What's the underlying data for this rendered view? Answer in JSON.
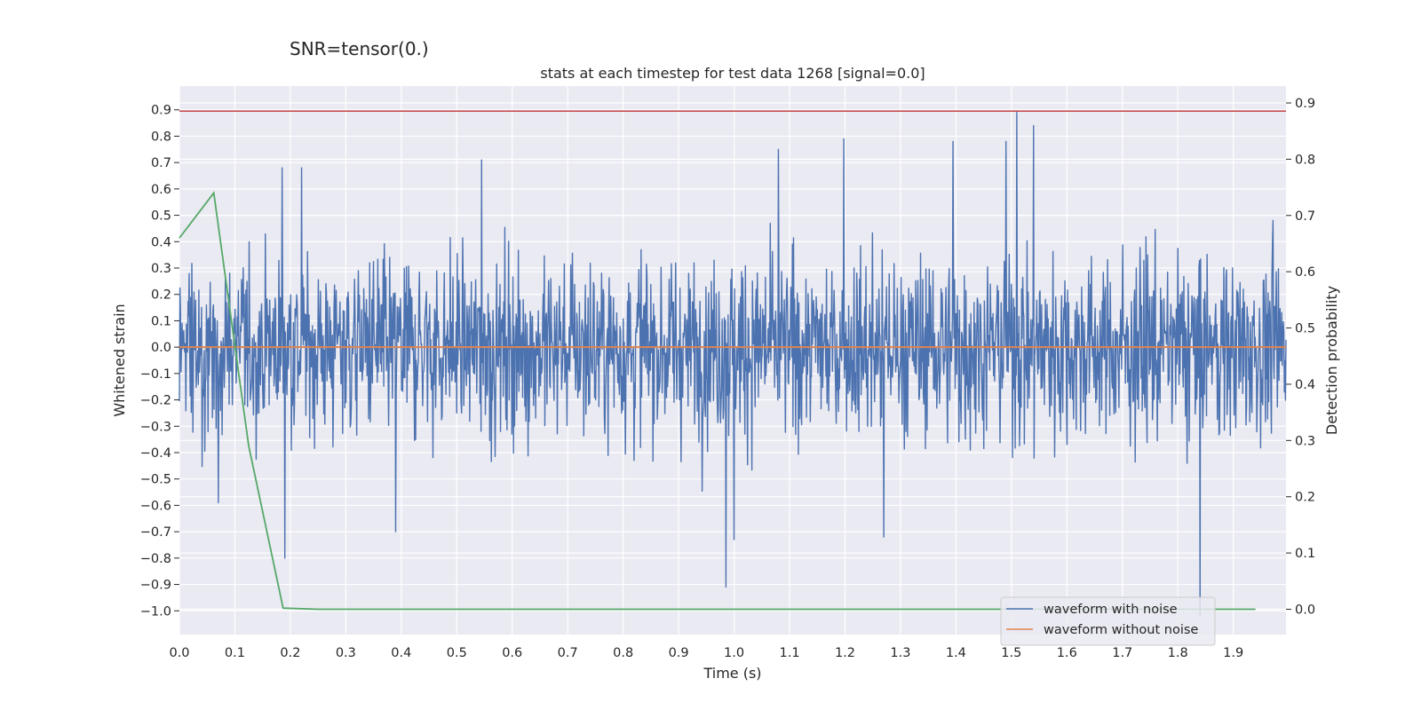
{
  "suptitle": "SNR=tensor(0.)",
  "chart_data": {
    "type": "line",
    "title": "stats at each timestep for test data 1268 [signal=0.0]",
    "xlabel": "Time (s)",
    "ylabel": "Whitened strain",
    "y2label": "Detection probability",
    "xlim": [
      0.0,
      1.995
    ],
    "ylim": [
      -1.09,
      0.99
    ],
    "y2lim": [
      -0.045,
      0.93
    ],
    "x_ticks": [
      "0.0",
      "0.1",
      "0.2",
      "0.3",
      "0.4",
      "0.5",
      "0.6",
      "0.7",
      "0.8",
      "0.9",
      "1.0",
      "1.1",
      "1.2",
      "1.3",
      "1.4",
      "1.5",
      "1.6",
      "1.7",
      "1.8",
      "1.9"
    ],
    "y_ticks": [
      "0.9",
      "0.8",
      "0.7",
      "0.6",
      "0.5",
      "0.4",
      "0.3",
      "0.2",
      "0.1",
      "0.0",
      "−0.1",
      "−0.2",
      "−0.3",
      "−0.4",
      "−0.5",
      "−0.6",
      "−0.7",
      "−0.8",
      "−0.9",
      "−1.0"
    ],
    "y2_ticks": [
      "0.9",
      "0.8",
      "0.7",
      "0.6",
      "0.5",
      "0.4",
      "0.3",
      "0.2",
      "0.1",
      "0.0"
    ],
    "grid": true,
    "legend_position": "bottom-right",
    "series": [
      {
        "name": "waveform with noise",
        "axis": "left",
        "color": "#4c72b0",
        "kind": "noise",
        "x_range": [
          0.0,
          1.995
        ],
        "samples": 2048,
        "typical_range": [
          -0.45,
          0.45
        ],
        "notable_peaks": [
          {
            "x": 0.185,
            "y": 0.68
          },
          {
            "x": 0.22,
            "y": 0.68
          },
          {
            "x": 0.545,
            "y": 0.71
          },
          {
            "x": 1.08,
            "y": 0.75
          },
          {
            "x": 1.198,
            "y": 0.79
          },
          {
            "x": 1.395,
            "y": 0.78
          },
          {
            "x": 1.49,
            "y": 0.78
          },
          {
            "x": 1.51,
            "y": 0.89
          },
          {
            "x": 1.54,
            "y": 0.84
          }
        ],
        "notable_troughs": [
          {
            "x": 0.07,
            "y": -0.59
          },
          {
            "x": 0.19,
            "y": -0.8
          },
          {
            "x": 0.39,
            "y": -0.7
          },
          {
            "x": 0.985,
            "y": -0.91
          },
          {
            "x": 1.0,
            "y": -0.73
          },
          {
            "x": 1.27,
            "y": -0.72
          },
          {
            "x": 1.84,
            "y": -1.02
          }
        ]
      },
      {
        "name": "waveform without noise",
        "axis": "left",
        "color": "#dd8452",
        "x": [
          0.0,
          1.995
        ],
        "y": [
          0.0,
          0.0
        ]
      },
      {
        "name": "detection probability",
        "axis": "right",
        "color": "#55a868",
        "in_legend": false,
        "x": [
          0.0,
          0.062,
          0.125,
          0.187,
          0.25,
          1.94
        ],
        "y": [
          0.66,
          0.74,
          0.29,
          0.002,
          0.0,
          0.0
        ]
      },
      {
        "name": "threshold",
        "axis": "left",
        "color": "#c44e52",
        "in_legend": false,
        "x": [
          0.0,
          1.995
        ],
        "y": [
          0.895,
          0.895
        ]
      }
    ]
  }
}
